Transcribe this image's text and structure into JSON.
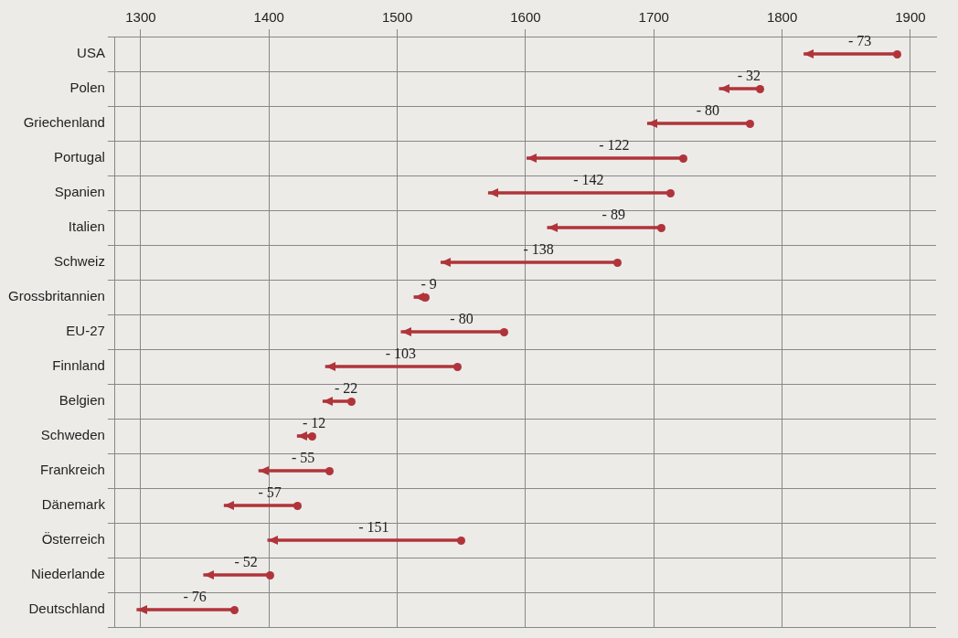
{
  "chart_data": {
    "type": "bar",
    "orientation": "horizontal",
    "categories": [
      "USA",
      "Polen",
      "Griechenland",
      "Portugal",
      "Spanien",
      "Italien",
      "Schweiz",
      "Grossbritannien",
      "EU-27",
      "Finnland",
      "Belgien",
      "Schweden",
      "Frankreich",
      "Dänemark",
      "Österreich",
      "Niederlande",
      "Deutschland"
    ],
    "base": [
      1890,
      1783,
      1775,
      1723,
      1713,
      1706,
      1672,
      1522,
      1583,
      1547,
      1464,
      1434,
      1447,
      1422,
      1550,
      1401,
      1373
    ],
    "values": [
      -73,
      -32,
      -80,
      -122,
      -142,
      -89,
      -138,
      -9,
      -80,
      -103,
      -22,
      -12,
      -55,
      -57,
      -151,
      -52,
      -76
    ],
    "value_labels": [
      "- 73",
      "- 32",
      "- 80",
      "- 122",
      "- 142",
      "- 89",
      "- 138",
      "- 9",
      "- 80",
      "- 103",
      "- 22",
      "- 12",
      "- 55",
      "- 57",
      "- 151",
      "- 52",
      "- 76"
    ],
    "color": "#b0343a",
    "xlim": [
      1280,
      1920
    ],
    "xticks": [
      1300,
      1400,
      1500,
      1600,
      1700,
      1800,
      1900
    ],
    "grid": true,
    "legend": false
  }
}
